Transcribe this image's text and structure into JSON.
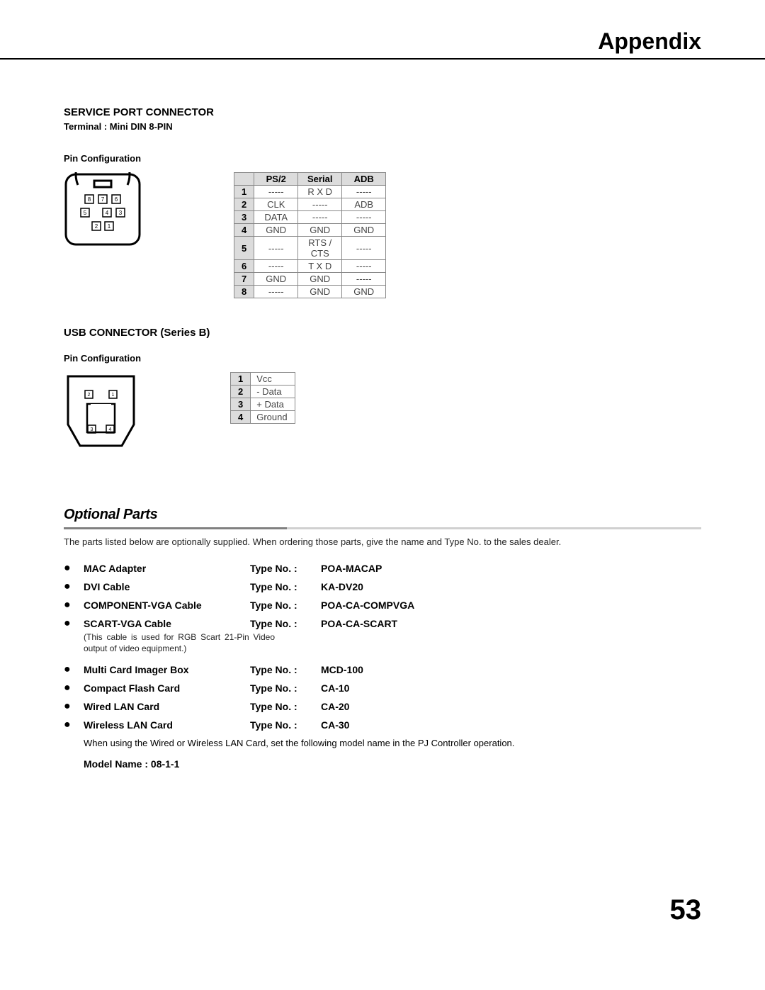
{
  "header": {
    "title": "Appendix"
  },
  "service_port": {
    "title": "SERVICE PORT CONNECTOR",
    "terminal": "Terminal : Mini DIN 8-PIN",
    "pin_config_label": "Pin Configuration",
    "table": {
      "headers": [
        "PS/2",
        "Serial",
        "ADB"
      ],
      "rows": [
        [
          "1",
          "-----",
          "R X D",
          "-----"
        ],
        [
          "2",
          "CLK",
          "-----",
          "ADB"
        ],
        [
          "3",
          "DATA",
          "-----",
          "-----"
        ],
        [
          "4",
          "GND",
          "GND",
          "GND"
        ],
        [
          "5",
          "-----",
          "RTS / CTS",
          "-----"
        ],
        [
          "6",
          "-----",
          "T X D",
          "-----"
        ],
        [
          "7",
          "GND",
          "GND",
          "-----"
        ],
        [
          "8",
          "-----",
          "GND",
          "GND"
        ]
      ]
    }
  },
  "usb": {
    "title": "USB CONNECTOR (Series B)",
    "pin_config_label": "Pin Configuration",
    "table": {
      "rows": [
        [
          "1",
          "Vcc"
        ],
        [
          "2",
          "- Data"
        ],
        [
          "3",
          "+ Data"
        ],
        [
          "4",
          "Ground"
        ]
      ]
    }
  },
  "optional": {
    "heading": "Optional Parts",
    "intro": "The parts listed below are optionally supplied.  When ordering those parts, give the name and Type No. to the sales dealer.",
    "type_label": "Type No.  :",
    "parts": [
      {
        "name": "MAC Adapter",
        "type": "POA-MACAP",
        "note": ""
      },
      {
        "name": "DVI Cable",
        "type": "KA-DV20",
        "note": ""
      },
      {
        "name": "COMPONENT-VGA Cable",
        "type": "POA-CA-COMPVGA",
        "note": ""
      },
      {
        "name": "SCART-VGA Cable",
        "type": "POA-CA-SCART",
        "note": "(This cable is used for RGB Scart 21-Pin Video output of video equipment.)"
      },
      {
        "name": "Multi Card Imager Box",
        "type": "MCD-100",
        "note": ""
      },
      {
        "name": "Compact Flash Card",
        "type": "CA-10",
        "note": ""
      },
      {
        "name": "Wired LAN Card",
        "type": "CA-20",
        "note": ""
      },
      {
        "name": "Wireless LAN Card",
        "type": "CA-30",
        "note": ""
      }
    ],
    "lan_note": "When using the Wired or Wireless LAN Card, set the following model name in the PJ Controller operation.",
    "model_name": "Model Name : 08-1-1"
  },
  "page_number": "53"
}
